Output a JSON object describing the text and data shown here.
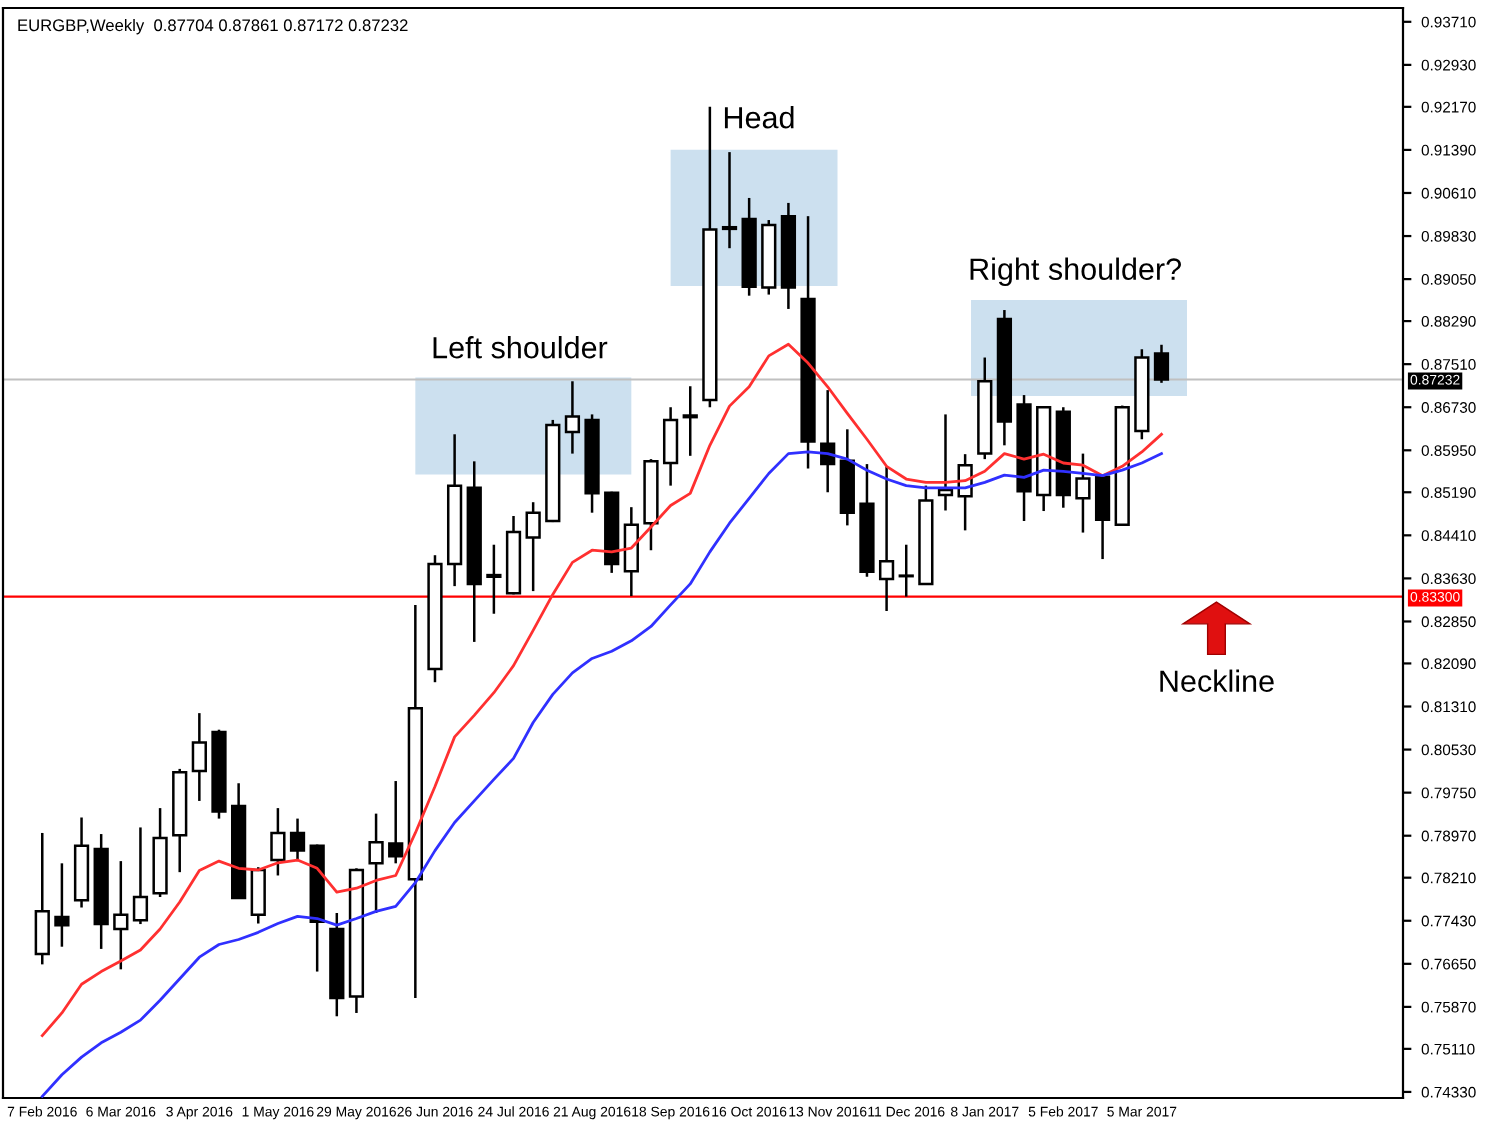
{
  "chart_data": {
    "type": "candlestick",
    "title": "EURGBP,Weekly  0.87704 0.87861 0.87172 0.87232",
    "categories": [
      "7 Feb 2016",
      null,
      null,
      null,
      "6 Mar 2016",
      null,
      null,
      null,
      "3 Apr 2016",
      null,
      null,
      null,
      "1 May 2016",
      null,
      null,
      null,
      "29 May 2016",
      null,
      null,
      null,
      "26 Jun 2016",
      null,
      null,
      null,
      "24 Jul 2016",
      null,
      null,
      null,
      "21 Aug 2016",
      null,
      null,
      null,
      "18 Sep 2016",
      null,
      null,
      null,
      "16 Oct 2016",
      null,
      null,
      null,
      "13 Nov 2016",
      null,
      null,
      null,
      "11 Dec 2016",
      null,
      null,
      null,
      "8 Jan 2017",
      null,
      null,
      null,
      "5 Feb 2017",
      null,
      null,
      null,
      "5 Mar 2017",
      null
    ],
    "ohlc": [
      [
        0.7683,
        0.7902,
        0.7664,
        0.776
      ],
      [
        0.775,
        0.7847,
        0.7696,
        0.7735
      ],
      [
        0.778,
        0.793,
        0.7767,
        0.7879
      ],
      [
        0.7873,
        0.79,
        0.7692,
        0.7737
      ],
      [
        0.7728,
        0.7851,
        0.7655,
        0.7754
      ],
      [
        0.7744,
        0.7912,
        0.7737,
        0.7786
      ],
      [
        0.7793,
        0.7947,
        0.7786,
        0.7893
      ],
      [
        0.7898,
        0.8018,
        0.7831,
        0.8012
      ],
      [
        0.8014,
        0.8119,
        0.796,
        0.8066
      ],
      [
        0.8085,
        0.8089,
        0.7928,
        0.7941
      ],
      [
        0.7951,
        0.7992,
        0.7784,
        0.7784
      ],
      [
        0.7754,
        0.784,
        0.7738,
        0.7835
      ],
      [
        0.7853,
        0.7947,
        0.7825,
        0.7902
      ],
      [
        0.7902,
        0.7928,
        0.7851,
        0.787
      ],
      [
        0.7879,
        0.7881,
        0.7651,
        0.7741
      ],
      [
        0.7728,
        0.7757,
        0.757,
        0.7603
      ],
      [
        0.7606,
        0.7838,
        0.7576,
        0.7835
      ],
      [
        0.7847,
        0.7937,
        0.7757,
        0.7885
      ],
      [
        0.7883,
        0.7996,
        0.7847,
        0.786
      ],
      [
        0.7818,
        0.8315,
        0.7603,
        0.8128
      ],
      [
        0.8199,
        0.8405,
        0.8175,
        0.8389
      ],
      [
        0.8389,
        0.8624,
        0.8349,
        0.8531
      ],
      [
        0.8527,
        0.8575,
        0.8248,
        0.8353
      ],
      [
        0.8369,
        0.8424,
        0.8299,
        0.8366
      ],
      [
        0.8336,
        0.8476,
        0.8334,
        0.8447
      ],
      [
        0.8437,
        0.8501,
        0.834,
        0.8482
      ],
      [
        0.8467,
        0.865,
        0.8465,
        0.8641
      ],
      [
        0.8628,
        0.872,
        0.8589,
        0.8656
      ],
      [
        0.865,
        0.866,
        0.8482,
        0.8517
      ],
      [
        0.8518,
        0.852,
        0.8373,
        0.8389
      ],
      [
        0.8376,
        0.8492,
        0.8331,
        0.846
      ],
      [
        0.8463,
        0.8579,
        0.8414,
        0.8575
      ],
      [
        0.8572,
        0.8673,
        0.8531,
        0.865
      ],
      [
        0.8658,
        0.8711,
        0.8585,
        0.8655
      ],
      [
        0.8686,
        0.9217,
        0.8673,
        0.8995
      ],
      [
        0.8999,
        0.9135,
        0.8961,
        0.8996
      ],
      [
        0.9014,
        0.9052,
        0.8875,
        0.8891
      ],
      [
        0.889,
        0.9012,
        0.8877,
        0.9003
      ],
      [
        0.9019,
        0.9043,
        0.8851,
        0.889
      ],
      [
        0.8869,
        0.9019,
        0.8562,
        0.8611
      ],
      [
        0.8607,
        0.8704,
        0.8519,
        0.857
      ],
      [
        0.8576,
        0.8633,
        0.8459,
        0.8482
      ],
      [
        0.8498,
        0.857,
        0.8366,
        0.8375
      ],
      [
        0.8362,
        0.8566,
        0.8304,
        0.8394
      ],
      [
        0.8368,
        0.8424,
        0.833,
        0.8367
      ],
      [
        0.8353,
        0.8531,
        0.8351,
        0.8504
      ],
      [
        0.8514,
        0.866,
        0.8486,
        0.8523
      ],
      [
        0.8512,
        0.8588,
        0.845,
        0.8568
      ],
      [
        0.8589,
        0.8763,
        0.8579,
        0.872
      ],
      [
        0.8833,
        0.8849,
        0.8604,
        0.8647
      ],
      [
        0.8678,
        0.8695,
        0.8467,
        0.8521
      ],
      [
        0.8514,
        0.8675,
        0.8485,
        0.8673
      ],
      [
        0.8665,
        0.8673,
        0.8491,
        0.8514
      ],
      [
        0.8508,
        0.8589,
        0.8446,
        0.8544
      ],
      [
        0.8547,
        0.8549,
        0.8398,
        0.8469
      ],
      [
        0.846,
        0.8676,
        0.8459,
        0.8673
      ],
      [
        0.863,
        0.8778,
        0.8615,
        0.8763
      ],
      [
        0.87704,
        0.87861,
        0.87172,
        0.87232
      ]
    ],
    "series": [
      {
        "type": "line",
        "color": "#ff3030",
        "values": [
          0.7535,
          0.7576,
          0.7628,
          0.7651,
          0.767,
          0.769,
          0.7728,
          0.7777,
          0.7834,
          0.7851,
          0.7838,
          0.7835,
          0.7848,
          0.7853,
          0.7838,
          0.7795,
          0.7802,
          0.7816,
          0.7825,
          0.7902,
          0.7986,
          0.8076,
          0.8115,
          0.8156,
          0.8205,
          0.8269,
          0.8334,
          0.8392,
          0.8414,
          0.8411,
          0.8418,
          0.8456,
          0.8495,
          0.8517,
          0.8604,
          0.8675,
          0.871,
          0.8766,
          0.8787,
          0.8753,
          0.871,
          0.8662,
          0.8615,
          0.8566,
          0.8543,
          0.8537,
          0.8537,
          0.854,
          0.8557,
          0.8589,
          0.8579,
          0.8588,
          0.8572,
          0.8568,
          0.8549,
          0.8566,
          0.8592,
          0.8624
        ]
      },
      {
        "type": "line",
        "color": "#3030ff",
        "values": [
          0.7425,
          0.7464,
          0.7496,
          0.7522,
          0.7541,
          0.7563,
          0.7599,
          0.7638,
          0.7677,
          0.77,
          0.7709,
          0.7722,
          0.7738,
          0.7751,
          0.7747,
          0.7735,
          0.7747,
          0.776,
          0.7769,
          0.7812,
          0.787,
          0.7921,
          0.796,
          0.7999,
          0.8037,
          0.8102,
          0.8153,
          0.8192,
          0.8218,
          0.8231,
          0.825,
          0.8276,
          0.8315,
          0.8353,
          0.8411,
          0.8463,
          0.8508,
          0.8553,
          0.8589,
          0.8592,
          0.8589,
          0.8579,
          0.8559,
          0.8543,
          0.8531,
          0.8527,
          0.8527,
          0.8527,
          0.8537,
          0.855,
          0.8546,
          0.8559,
          0.8557,
          0.8553,
          0.8549,
          0.8559,
          0.8572,
          0.8589
        ]
      }
    ],
    "ylim": [
      0.7422,
      0.9396
    ],
    "yticks": [
      {
        "value": 0.9371,
        "label": "0.93710"
      },
      {
        "value": 0.9293,
        "label": "0.92930"
      },
      {
        "value": 0.9217,
        "label": "0.92170"
      },
      {
        "value": 0.9139,
        "label": "0.91390"
      },
      {
        "value": 0.9061,
        "label": "0.90610"
      },
      {
        "value": 0.8983,
        "label": "0.89830"
      },
      {
        "value": 0.8905,
        "label": "0.89050"
      },
      {
        "value": 0.8829,
        "label": "0.88290"
      },
      {
        "value": 0.8751,
        "label": "0.87510"
      },
      {
        "value": 0.8673,
        "label": "0.86730"
      },
      {
        "value": 0.8595,
        "label": "0.85950"
      },
      {
        "value": 0.8519,
        "label": "0.85190"
      },
      {
        "value": 0.8441,
        "label": "0.84410"
      },
      {
        "value": 0.8363,
        "label": "0.83630"
      },
      {
        "value": 0.8285,
        "label": "0.82850"
      },
      {
        "value": 0.8209,
        "label": "0.82090"
      },
      {
        "value": 0.8131,
        "label": "0.81310"
      },
      {
        "value": 0.8053,
        "label": "0.80530"
      },
      {
        "value": 0.7975,
        "label": "0.79750"
      },
      {
        "value": 0.7897,
        "label": "0.78970"
      },
      {
        "value": 0.7821,
        "label": "0.78210"
      },
      {
        "value": 0.7743,
        "label": "0.77430"
      },
      {
        "value": 0.7665,
        "label": "0.76650"
      },
      {
        "value": 0.7587,
        "label": "0.75870"
      },
      {
        "value": 0.7511,
        "label": "0.75110"
      },
      {
        "value": 0.7433,
        "label": "0.74330"
      }
    ],
    "ref_lines": [
      {
        "axis": "y",
        "value": 0.87232,
        "label": "0.87232",
        "color": "#c0c0c0"
      },
      {
        "axis": "y",
        "value": 0.833,
        "label": "0.83300",
        "color": "#ff0000"
      }
    ],
    "annotations": [
      "Left shoulder",
      "Head",
      "Right shoulder?",
      "Neckline"
    ],
    "grid": false,
    "legend": false
  }
}
